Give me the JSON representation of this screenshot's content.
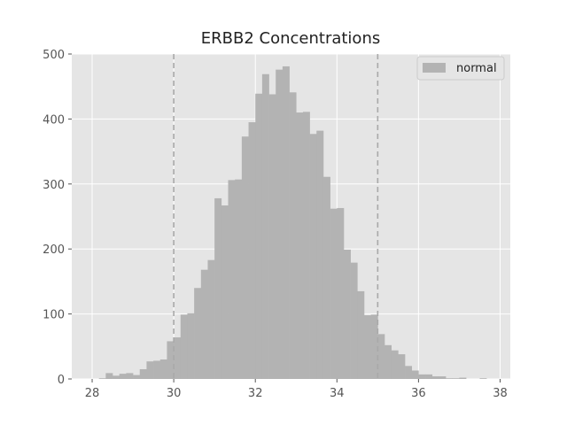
{
  "chart_data": {
    "type": "bar",
    "title": "ERBB2 Concentrations",
    "xlabel": "",
    "ylabel": "",
    "xlim": [
      27.5,
      38.25
    ],
    "ylim": [
      0,
      500
    ],
    "xticks": [
      28,
      30,
      32,
      34,
      36,
      38
    ],
    "yticks": [
      0,
      100,
      200,
      300,
      400,
      500
    ],
    "grid": true,
    "legend_position": "top-right",
    "reference_lines_x": [
      30,
      35
    ],
    "colors": {
      "background": "#E5E5E5",
      "bars": "#B3B3B3",
      "grid": "#FFFFFF",
      "reference_line": "#A9A9A9"
    },
    "series": [
      {
        "name": "normal",
        "bin_width": 0.1667,
        "x": [
          28.0,
          28.1667,
          28.3333,
          28.5,
          28.6667,
          28.8333,
          29.0,
          29.1667,
          29.3333,
          29.5,
          29.6667,
          29.8333,
          30.0,
          30.1667,
          30.3333,
          30.5,
          30.6667,
          30.8333,
          31.0,
          31.1667,
          31.3333,
          31.5,
          31.6667,
          31.8333,
          32.0,
          32.1667,
          32.3333,
          32.5,
          32.6667,
          32.8333,
          33.0,
          33.1667,
          33.3333,
          33.5,
          33.6667,
          33.8333,
          34.0,
          34.1667,
          34.3333,
          34.5,
          34.6667,
          34.8333,
          35.0,
          35.1667,
          35.3333,
          35.5,
          35.6667,
          35.8333,
          36.0,
          36.1667,
          36.3333,
          36.5,
          36.6667,
          36.8333,
          37.0,
          37.1667,
          37.3333,
          37.5,
          37.6667,
          37.8333
        ],
        "values": [
          0,
          1,
          9,
          5,
          8,
          9,
          6,
          15,
          27,
          28,
          30,
          58,
          64,
          99,
          101,
          140,
          168,
          183,
          278,
          267,
          306,
          307,
          373,
          395,
          439,
          469,
          438,
          476,
          481,
          441,
          410,
          411,
          377,
          382,
          311,
          262,
          263,
          199,
          179,
          135,
          98,
          99,
          69,
          52,
          44,
          38,
          20,
          13,
          7,
          7,
          4,
          4,
          1,
          1,
          2,
          0,
          0,
          1,
          0,
          0
        ]
      }
    ]
  }
}
